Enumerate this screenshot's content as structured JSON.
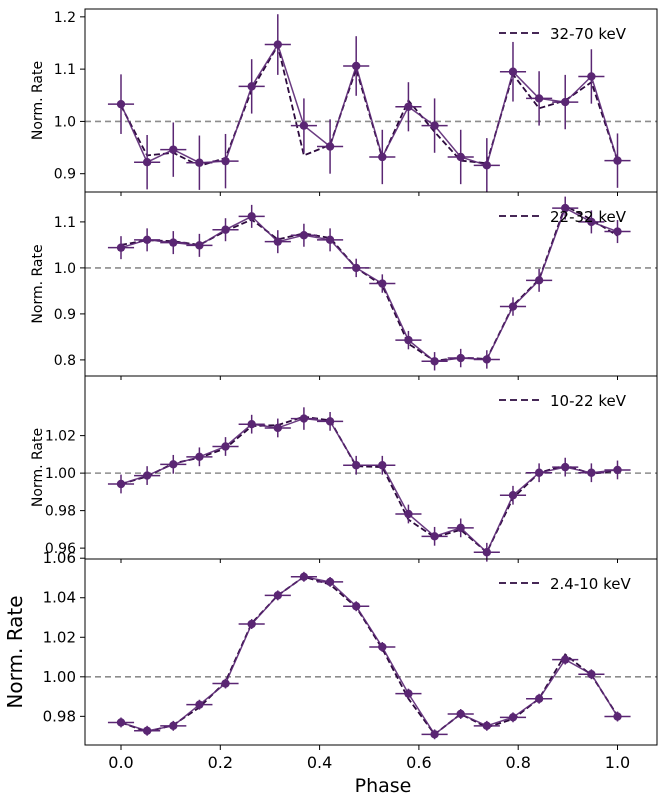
{
  "chart_data": [
    {
      "type": "line",
      "legend": "32-70 keV",
      "ylabel": "Norm. Rate",
      "xlabel": "",
      "ylim": [
        0.865,
        1.215
      ],
      "yticks": [
        "0.9",
        "1.0",
        "1.1",
        "1.2"
      ],
      "ytick_values": [
        0.9,
        1.0,
        1.1,
        1.2
      ],
      "x": [
        0.0,
        0.0526,
        0.1053,
        0.1579,
        0.2105,
        0.2632,
        0.3158,
        0.3684,
        0.4211,
        0.4737,
        0.5263,
        0.5789,
        0.6316,
        0.6842,
        0.7368,
        0.7895,
        0.8421,
        0.8947,
        0.9474,
        1.0
      ],
      "y": [
        1.033,
        0.922,
        0.946,
        0.921,
        0.924,
        1.067,
        1.147,
        0.992,
        0.952,
        1.106,
        0.932,
        1.028,
        0.992,
        0.932,
        0.916,
        1.095,
        1.044,
        1.037,
        1.086,
        0.925
      ],
      "yerr": [
        0.057,
        0.052,
        0.052,
        0.052,
        0.052,
        0.052,
        0.058,
        0.052,
        0.052,
        0.057,
        0.052,
        0.047,
        0.052,
        0.052,
        0.052,
        0.057,
        0.052,
        0.052,
        0.052,
        0.052
      ],
      "model": [
        1.03,
        0.935,
        0.94,
        0.915,
        0.93,
        1.06,
        1.145,
        0.935,
        0.955,
        1.1,
        0.93,
        1.04,
        0.98,
        0.925,
        0.92,
        1.09,
        1.025,
        1.04,
        1.075,
        0.925
      ]
    },
    {
      "type": "line",
      "legend": "22-32 keV",
      "ylabel": "Norm. Rate",
      "xlabel": "",
      "ylim": [
        0.765,
        1.165
      ],
      "yticks": [
        "0.8",
        "0.9",
        "1.0",
        "1.1"
      ],
      "ytick_values": [
        0.8,
        0.9,
        1.0,
        1.1
      ],
      "x": [
        0.0,
        0.0526,
        0.1053,
        0.1579,
        0.2105,
        0.2632,
        0.3158,
        0.3684,
        0.4211,
        0.4737,
        0.5263,
        0.5789,
        0.6316,
        0.6842,
        0.7368,
        0.7895,
        0.8421,
        0.8947,
        0.9474,
        1.0
      ],
      "y": [
        1.044,
        1.061,
        1.055,
        1.049,
        1.083,
        1.112,
        1.057,
        1.071,
        1.061,
        1.0,
        0.966,
        0.843,
        0.797,
        0.804,
        0.801,
        0.916,
        0.973,
        1.13,
        1.1,
        1.079
      ],
      "yerr": [
        0.025,
        0.025,
        0.025,
        0.025,
        0.025,
        0.025,
        0.025,
        0.025,
        0.025,
        0.02,
        0.02,
        0.02,
        0.02,
        0.02,
        0.02,
        0.02,
        0.025,
        0.025,
        0.025,
        0.025
      ],
      "model": [
        1.05,
        1.06,
        1.058,
        1.05,
        1.08,
        1.105,
        1.062,
        1.075,
        1.065,
        1.0,
        0.962,
        0.835,
        0.798,
        0.805,
        0.802,
        0.918,
        0.975,
        1.135,
        1.105,
        1.07
      ]
    },
    {
      "type": "line",
      "legend": "10-22 keV",
      "ylabel": "Norm. Rate",
      "xlabel": "",
      "ylim": [
        0.9542,
        1.0518
      ],
      "yticks": [
        "0.96",
        "0.98",
        "1.00",
        "1.02"
      ],
      "ytick_values": [
        0.96,
        0.98,
        1.0,
        1.02
      ],
      "x": [
        0.0,
        0.0526,
        0.1053,
        0.1579,
        0.2105,
        0.2632,
        0.3158,
        0.3684,
        0.4211,
        0.4737,
        0.5263,
        0.5789,
        0.6316,
        0.6842,
        0.7368,
        0.7895,
        0.8421,
        0.8947,
        0.9474,
        1.0
      ],
      "y": [
        0.9942,
        0.9987,
        1.0047,
        1.0087,
        1.0142,
        1.0261,
        1.0241,
        1.0291,
        1.0276,
        1.0042,
        1.0042,
        0.9782,
        0.9663,
        0.9708,
        0.9578,
        0.9882,
        1.0002,
        1.0032,
        1.0002,
        1.0017
      ],
      "yerr": [
        0.005,
        0.005,
        0.005,
        0.005,
        0.005,
        0.005,
        0.005,
        0.006,
        0.005,
        0.005,
        0.005,
        0.005,
        0.005,
        0.005,
        0.005,
        0.005,
        0.005,
        0.005,
        0.005,
        0.005
      ],
      "model": [
        0.9942,
        0.9982,
        1.0052,
        1.0082,
        1.0132,
        1.0251,
        1.0256,
        1.0301,
        1.0281,
        1.0037,
        1.0032,
        0.9752,
        0.9658,
        0.9698,
        0.9578,
        0.9867,
        1.0002,
        1.0042,
        0.9997,
        1.0012
      ]
    },
    {
      "type": "line",
      "legend": "2.4-10 keV",
      "ylabel": "Norm. Rate",
      "xlabel": "Phase",
      "ylim": [
        0.9655,
        1.0596
      ],
      "yticks": [
        "0.98",
        "1.00",
        "1.02",
        "1.04",
        "1.06"
      ],
      "ytick_values": [
        0.98,
        1.0,
        1.02,
        1.04,
        1.06
      ],
      "xticks": [
        "0.0",
        "0.2",
        "0.4",
        "0.6",
        "0.8",
        "1.0"
      ],
      "xtick_values": [
        0.0,
        0.2,
        0.4,
        0.6,
        0.8,
        1.0
      ],
      "x": [
        0.0,
        0.0526,
        0.1053,
        0.1579,
        0.2105,
        0.2632,
        0.3158,
        0.3684,
        0.4211,
        0.4737,
        0.5263,
        0.5789,
        0.6316,
        0.6842,
        0.7368,
        0.7895,
        0.8421,
        0.8947,
        0.9474,
        1.0
      ],
      "y": [
        0.9769,
        0.9727,
        0.9752,
        0.9859,
        0.9966,
        1.0267,
        1.0412,
        1.0506,
        1.048,
        1.0357,
        1.0151,
        0.9915,
        0.9709,
        0.9812,
        0.9752,
        0.9795,
        0.9889,
        1.0087,
        1.0013,
        0.9799
      ],
      "yerr": [
        0.0025,
        0.0025,
        0.0025,
        0.0025,
        0.0025,
        0.0025,
        0.0025,
        0.0025,
        0.0025,
        0.0025,
        0.0025,
        0.0025,
        0.0025,
        0.0025,
        0.0025,
        0.0025,
        0.0025,
        0.0025,
        0.0025,
        0.0025
      ],
      "model": [
        0.9769,
        0.9722,
        0.9756,
        0.9845,
        0.9975,
        1.0271,
        1.0412,
        1.0506,
        1.0467,
        1.0352,
        1.0142,
        0.9889,
        0.9709,
        0.9812,
        0.9744,
        0.9786,
        0.9889,
        1.0113,
        1.0009,
        0.9803
      ]
    }
  ],
  "colors": {
    "data": "#5a2673",
    "model": "#2d0a3e",
    "reference": "#8c8c8c"
  }
}
